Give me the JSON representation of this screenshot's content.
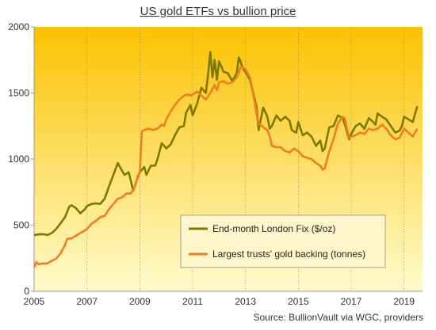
{
  "chart_data": {
    "type": "line",
    "title": "US gold ETFs vs bullion price",
    "source": "Source:  BullionVault via  WGC, providers",
    "xlim": [
      2005,
      2019.7
    ],
    "ylim": [
      0,
      2000
    ],
    "x_ticks": [
      2005,
      2007,
      2009,
      2011,
      2013,
      2015,
      2017,
      2019
    ],
    "y_ticks": [
      0,
      500,
      1000,
      1500,
      2000
    ],
    "grid": "vertical",
    "legend_position": "bottom-center",
    "colors": {
      "bg_top": "#fbc200",
      "bg_bottom": "#fffbcc",
      "grid": "#7a7a7a"
    },
    "series": [
      {
        "name": "End-month London Fix ($/oz)",
        "color": "#7a7a00",
        "points": [
          [
            2005.0,
            425
          ],
          [
            2005.17,
            430
          ],
          [
            2005.33,
            432
          ],
          [
            2005.5,
            425
          ],
          [
            2005.67,
            440
          ],
          [
            2005.83,
            470
          ],
          [
            2006.0,
            513
          ],
          [
            2006.17,
            560
          ],
          [
            2006.33,
            640
          ],
          [
            2006.42,
            650
          ],
          [
            2006.58,
            630
          ],
          [
            2006.75,
            590
          ],
          [
            2006.92,
            620
          ],
          [
            2007.0,
            645
          ],
          [
            2007.17,
            660
          ],
          [
            2007.33,
            665
          ],
          [
            2007.5,
            660
          ],
          [
            2007.67,
            700
          ],
          [
            2007.83,
            790
          ],
          [
            2008.0,
            880
          ],
          [
            2008.17,
            970
          ],
          [
            2008.25,
            940
          ],
          [
            2008.42,
            880
          ],
          [
            2008.58,
            900
          ],
          [
            2008.67,
            830
          ],
          [
            2008.75,
            760
          ],
          [
            2008.92,
            860
          ],
          [
            2009.0,
            900
          ],
          [
            2009.17,
            940
          ],
          [
            2009.25,
            880
          ],
          [
            2009.42,
            950
          ],
          [
            2009.58,
            950
          ],
          [
            2009.67,
            1000
          ],
          [
            2009.83,
            1120
          ],
          [
            2009.92,
            1100
          ],
          [
            2010.0,
            1080
          ],
          [
            2010.17,
            1110
          ],
          [
            2010.33,
            1180
          ],
          [
            2010.5,
            1240
          ],
          [
            2010.67,
            1250
          ],
          [
            2010.75,
            1350
          ],
          [
            2010.92,
            1410
          ],
          [
            2011.0,
            1330
          ],
          [
            2011.17,
            1420
          ],
          [
            2011.33,
            1540
          ],
          [
            2011.5,
            1500
          ],
          [
            2011.58,
            1630
          ],
          [
            2011.67,
            1810
          ],
          [
            2011.75,
            1620
          ],
          [
            2011.83,
            1750
          ],
          [
            2011.92,
            1600
          ],
          [
            2012.0,
            1740
          ],
          [
            2012.17,
            1660
          ],
          [
            2012.33,
            1650
          ],
          [
            2012.5,
            1590
          ],
          [
            2012.67,
            1650
          ],
          [
            2012.75,
            1770
          ],
          [
            2012.92,
            1680
          ],
          [
            2013.0,
            1660
          ],
          [
            2013.17,
            1600
          ],
          [
            2013.33,
            1470
          ],
          [
            2013.42,
            1390
          ],
          [
            2013.5,
            1220
          ],
          [
            2013.67,
            1390
          ],
          [
            2013.83,
            1320
          ],
          [
            2013.92,
            1230
          ],
          [
            2014.0,
            1250
          ],
          [
            2014.17,
            1330
          ],
          [
            2014.33,
            1290
          ],
          [
            2014.5,
            1320
          ],
          [
            2014.67,
            1290
          ],
          [
            2014.75,
            1220
          ],
          [
            2014.92,
            1200
          ],
          [
            2015.0,
            1280
          ],
          [
            2015.17,
            1180
          ],
          [
            2015.33,
            1200
          ],
          [
            2015.5,
            1170
          ],
          [
            2015.67,
            1100
          ],
          [
            2015.83,
            1140
          ],
          [
            2015.92,
            1060
          ],
          [
            2016.0,
            1080
          ],
          [
            2016.17,
            1240
          ],
          [
            2016.33,
            1250
          ],
          [
            2016.5,
            1330
          ],
          [
            2016.67,
            1310
          ],
          [
            2016.75,
            1270
          ],
          [
            2016.92,
            1150
          ],
          [
            2017.0,
            1190
          ],
          [
            2017.17,
            1250
          ],
          [
            2017.33,
            1270
          ],
          [
            2017.5,
            1230
          ],
          [
            2017.67,
            1310
          ],
          [
            2017.83,
            1280
          ],
          [
            2017.92,
            1260
          ],
          [
            2018.0,
            1345
          ],
          [
            2018.17,
            1320
          ],
          [
            2018.33,
            1300
          ],
          [
            2018.5,
            1250
          ],
          [
            2018.67,
            1200
          ],
          [
            2018.83,
            1215
          ],
          [
            2018.92,
            1250
          ],
          [
            2019.0,
            1320
          ],
          [
            2019.17,
            1300
          ],
          [
            2019.33,
            1280
          ],
          [
            2019.5,
            1400
          ]
        ]
      },
      {
        "name": "Largest trusts' gold backing (tonnes)",
        "color": "#f07d20",
        "points": [
          [
            2005.0,
            180
          ],
          [
            2005.08,
            220
          ],
          [
            2005.17,
            205
          ],
          [
            2005.33,
            210
          ],
          [
            2005.5,
            210
          ],
          [
            2005.67,
            230
          ],
          [
            2005.83,
            245
          ],
          [
            2006.0,
            285
          ],
          [
            2006.17,
            350
          ],
          [
            2006.25,
            395
          ],
          [
            2006.42,
            400
          ],
          [
            2006.58,
            420
          ],
          [
            2006.75,
            440
          ],
          [
            2006.92,
            460
          ],
          [
            2007.0,
            470
          ],
          [
            2007.17,
            510
          ],
          [
            2007.33,
            530
          ],
          [
            2007.5,
            560
          ],
          [
            2007.67,
            570
          ],
          [
            2007.83,
            620
          ],
          [
            2008.0,
            660
          ],
          [
            2008.17,
            700
          ],
          [
            2008.33,
            710
          ],
          [
            2008.5,
            740
          ],
          [
            2008.67,
            740
          ],
          [
            2008.83,
            800
          ],
          [
            2008.92,
            870
          ],
          [
            2009.0,
            900
          ],
          [
            2009.08,
            1210
          ],
          [
            2009.17,
            1220
          ],
          [
            2009.33,
            1230
          ],
          [
            2009.5,
            1220
          ],
          [
            2009.67,
            1230
          ],
          [
            2009.83,
            1260
          ],
          [
            2009.92,
            1250
          ],
          [
            2010.0,
            1300
          ],
          [
            2010.17,
            1360
          ],
          [
            2010.33,
            1410
          ],
          [
            2010.5,
            1450
          ],
          [
            2010.67,
            1480
          ],
          [
            2010.83,
            1490
          ],
          [
            2010.92,
            1480
          ],
          [
            2011.0,
            1490
          ],
          [
            2011.17,
            1510
          ],
          [
            2011.33,
            1480
          ],
          [
            2011.5,
            1450
          ],
          [
            2011.67,
            1500
          ],
          [
            2011.83,
            1560
          ],
          [
            2011.92,
            1520
          ],
          [
            2012.0,
            1580
          ],
          [
            2012.17,
            1590
          ],
          [
            2012.33,
            1570
          ],
          [
            2012.5,
            1580
          ],
          [
            2012.67,
            1620
          ],
          [
            2012.83,
            1700
          ],
          [
            2013.0,
            1680
          ],
          [
            2013.17,
            1620
          ],
          [
            2013.33,
            1450
          ],
          [
            2013.42,
            1340
          ],
          [
            2013.5,
            1270
          ],
          [
            2013.67,
            1240
          ],
          [
            2013.83,
            1220
          ],
          [
            2013.92,
            1170
          ],
          [
            2014.0,
            1100
          ],
          [
            2014.17,
            1090
          ],
          [
            2014.33,
            1090
          ],
          [
            2014.5,
            1060
          ],
          [
            2014.67,
            1050
          ],
          [
            2014.83,
            1080
          ],
          [
            2015.0,
            1060
          ],
          [
            2015.17,
            1020
          ],
          [
            2015.33,
            1010
          ],
          [
            2015.5,
            1000
          ],
          [
            2015.67,
            970
          ],
          [
            2015.83,
            950
          ],
          [
            2015.92,
            920
          ],
          [
            2016.0,
            930
          ],
          [
            2016.17,
            1060
          ],
          [
            2016.33,
            1150
          ],
          [
            2016.5,
            1270
          ],
          [
            2016.67,
            1320
          ],
          [
            2016.75,
            1310
          ],
          [
            2016.92,
            1160
          ],
          [
            2017.0,
            1170
          ],
          [
            2017.17,
            1180
          ],
          [
            2017.33,
            1200
          ],
          [
            2017.5,
            1190
          ],
          [
            2017.67,
            1230
          ],
          [
            2017.83,
            1220
          ],
          [
            2018.0,
            1230
          ],
          [
            2018.17,
            1260
          ],
          [
            2018.33,
            1230
          ],
          [
            2018.5,
            1180
          ],
          [
            2018.67,
            1150
          ],
          [
            2018.83,
            1160
          ],
          [
            2019.0,
            1230
          ],
          [
            2019.17,
            1200
          ],
          [
            2019.33,
            1170
          ],
          [
            2019.5,
            1230
          ]
        ]
      }
    ]
  }
}
